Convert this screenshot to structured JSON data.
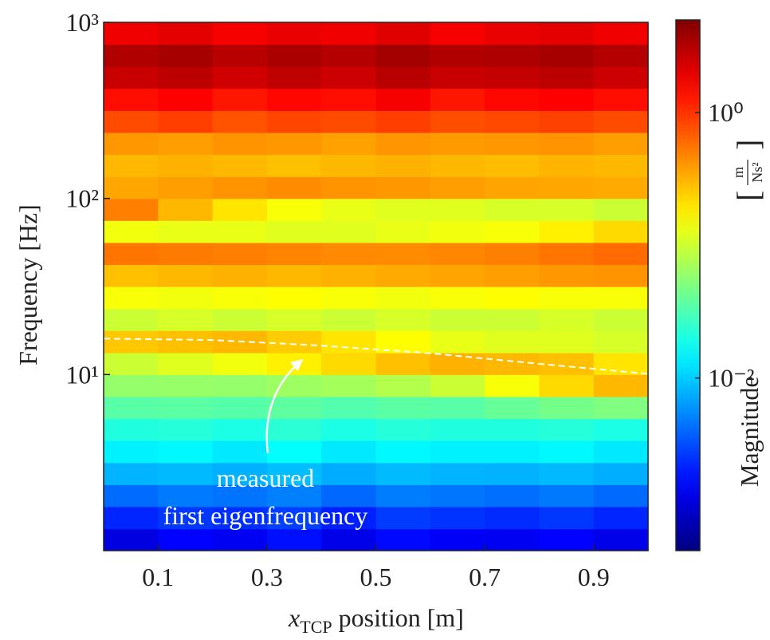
{
  "chart_data": {
    "type": "heatmap",
    "xlabel": {
      "symbol": "x",
      "subscript": "TCP",
      "text": "position [m]"
    },
    "ylabel": "Frequency [Hz]",
    "x": [
      0,
      0.1,
      0.2,
      0.3,
      0.4,
      0.5,
      0.6,
      0.7,
      0.8,
      0.9,
      1.0
    ],
    "y": [
      1,
      1.33,
      1.78,
      2.37,
      3.16,
      4.22,
      5.62,
      7.5,
      10,
      13.3,
      17.8,
      23.7,
      31.6,
      42.2,
      56.2,
      75,
      100,
      133,
      178,
      237,
      316,
      422,
      562,
      750,
      1000
    ],
    "values": [
      [
        0.0012,
        0.0016,
        0.0014,
        0.0018,
        0.0013,
        0.0017,
        0.0015,
        0.0014,
        0.0016,
        0.0013
      ],
      [
        0.0022,
        0.0026,
        0.0024,
        0.0028,
        0.0021,
        0.0027,
        0.0025,
        0.0023,
        0.0026,
        0.0022
      ],
      [
        0.0042,
        0.0048,
        0.0045,
        0.005,
        0.004,
        0.0049,
        0.0046,
        0.0043,
        0.0047,
        0.0041
      ],
      [
        0.008,
        0.0085,
        0.0078,
        0.0088,
        0.0075,
        0.0086,
        0.008,
        0.0079,
        0.0084,
        0.0076
      ],
      [
        0.014,
        0.015,
        0.013,
        0.016,
        0.013,
        0.015,
        0.014,
        0.014,
        0.015,
        0.013
      ],
      [
        0.021,
        0.022,
        0.02,
        0.023,
        0.02,
        0.022,
        0.021,
        0.021,
        0.022,
        0.02
      ],
      [
        0.035,
        0.036,
        0.034,
        0.037,
        0.033,
        0.036,
        0.035,
        0.04,
        0.045,
        0.05
      ],
      [
        0.06,
        0.062,
        0.06,
        0.065,
        0.07,
        0.08,
        0.1,
        0.15,
        0.22,
        0.3
      ],
      [
        0.1,
        0.12,
        0.14,
        0.18,
        0.22,
        0.28,
        0.32,
        0.3,
        0.28,
        0.2
      ],
      [
        0.26,
        0.28,
        0.3,
        0.25,
        0.2,
        0.16,
        0.13,
        0.12,
        0.12,
        0.11
      ],
      [
        0.1,
        0.11,
        0.1,
        0.11,
        0.1,
        0.11,
        0.1,
        0.1,
        0.11,
        0.1
      ],
      [
        0.15,
        0.14,
        0.15,
        0.16,
        0.15,
        0.14,
        0.15,
        0.16,
        0.15,
        0.15
      ],
      [
        0.28,
        0.3,
        0.32,
        0.3,
        0.32,
        0.34,
        0.36,
        0.38,
        0.4,
        0.42
      ],
      [
        0.55,
        0.52,
        0.5,
        0.48,
        0.46,
        0.45,
        0.47,
        0.5,
        0.55,
        0.6
      ],
      [
        0.14,
        0.13,
        0.13,
        0.12,
        0.12,
        0.13,
        0.14,
        0.15,
        0.18,
        0.22
      ],
      [
        0.5,
        0.3,
        0.2,
        0.15,
        0.13,
        0.12,
        0.12,
        0.11,
        0.11,
        0.1
      ],
      [
        0.35,
        0.38,
        0.42,
        0.45,
        0.42,
        0.4,
        0.38,
        0.36,
        0.35,
        0.34
      ],
      [
        0.3,
        0.32,
        0.3,
        0.28,
        0.3,
        0.32,
        0.3,
        0.29,
        0.31,
        0.3
      ],
      [
        0.4,
        0.38,
        0.42,
        0.4,
        0.37,
        0.41,
        0.39,
        0.4,
        0.42,
        0.38
      ],
      [
        0.8,
        0.9,
        0.75,
        0.85,
        0.8,
        0.9,
        0.78,
        0.82,
        0.88,
        0.8
      ],
      [
        1.4,
        1.6,
        1.3,
        1.5,
        1.4,
        1.7,
        1.3,
        1.5,
        1.6,
        1.4
      ],
      [
        2.6,
        2.9,
        2.4,
        2.8,
        2.5,
        3,
        2.6,
        2.7,
        2.9,
        2.5
      ],
      [
        3.2,
        3.5,
        3,
        3.4,
        3.1,
        3.6,
        3.2,
        3.3,
        3.5,
        3.1
      ],
      [
        1.8,
        2,
        1.7,
        1.9,
        1.8,
        2.1,
        1.7,
        1.9,
        2,
        1.8
      ]
    ],
    "xlim": [
      0,
      1
    ],
    "xticks": [
      0.1,
      0.3,
      0.5,
      0.7,
      0.9
    ],
    "ylim": [
      1,
      1000
    ],
    "ylog": true,
    "yticks": [
      {
        "value": 10,
        "label": "10¹"
      },
      {
        "value": 100,
        "label": "10²"
      },
      {
        "value": 1000,
        "label": "10³"
      }
    ],
    "colorbar": {
      "label": "Magnitude",
      "unit_numerator": "m",
      "unit_denominator": "Ns²",
      "colormap": "jet",
      "log": true,
      "lim": [
        0.0005,
        5
      ],
      "ticks": [
        {
          "value": 0.01,
          "label": "10⁻²"
        },
        {
          "value": 1,
          "label": "10⁰"
        }
      ]
    },
    "curve": {
      "x": [
        0,
        0.2,
        0.4,
        0.6,
        0.8,
        1.0
      ],
      "y": [
        16,
        15.7,
        14.6,
        13.2,
        11.5,
        10.1
      ],
      "color": "#ffffff"
    },
    "annotation": [
      "measured",
      "first eigenfrequency"
    ]
  }
}
